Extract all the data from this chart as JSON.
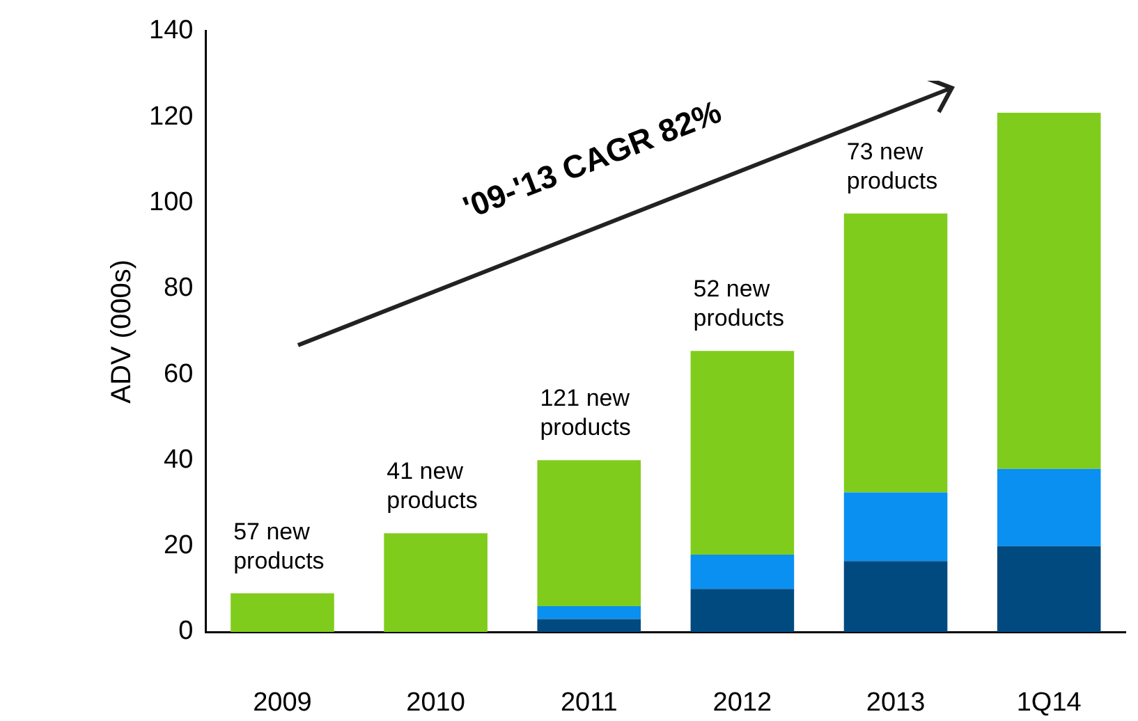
{
  "chart_data": {
    "type": "bar",
    "stacked": true,
    "ylabel": "ADV (000s)",
    "categories": [
      "2009",
      "2010",
      "2011",
      "2012",
      "2013",
      "1Q14"
    ],
    "series": [
      {
        "color": "#004a80",
        "values": [
          null,
          null,
          3,
          10,
          16.5,
          20
        ]
      },
      {
        "color": "#0a90f0",
        "values": [
          null,
          null,
          3,
          8,
          16,
          18
        ]
      },
      {
        "color": "#80cc1c",
        "values": [
          9,
          23,
          34,
          47.5,
          65,
          83
        ]
      }
    ],
    "ylim": [
      0,
      140
    ],
    "yticks": [
      0,
      20,
      40,
      60,
      80,
      100,
      120,
      140
    ],
    "grid": false,
    "legend": false,
    "annotations": [
      {
        "text": "57 new products",
        "x": "2009",
        "y": 9
      },
      {
        "text": "41 new products",
        "x": "2010",
        "y": 23
      },
      {
        "text": "121 new products",
        "x": "2011",
        "y": 40
      },
      {
        "text": "52 new products",
        "x": "2012",
        "y": 65.5
      },
      {
        "text": "73 new products",
        "x": "2013",
        "y": 97.5
      },
      "'09-'13 CAGR 82%"
    ]
  }
}
